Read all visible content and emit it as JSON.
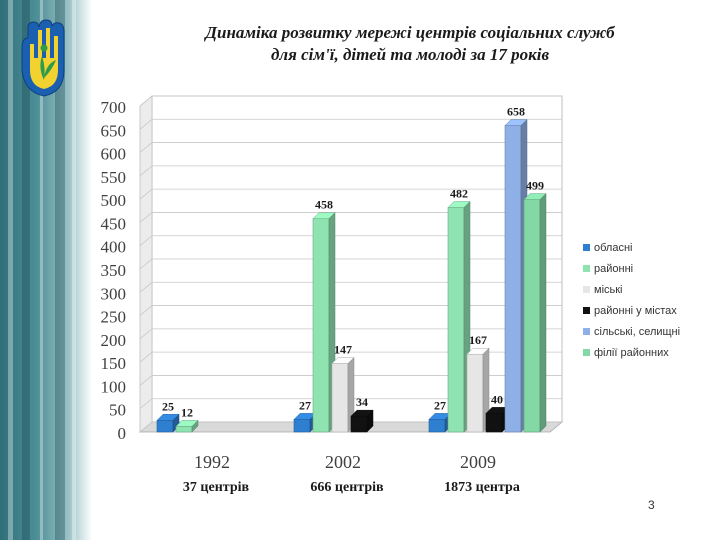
{
  "title_lines": [
    "Динаміка розвитку мережі центрів соціальних служб",
    "для сім'ї, дітей та молоді за 17 років"
  ],
  "page_number": "3",
  "colors": {
    "oblasni": "#2f7fd0",
    "raionni": "#8fe3b0",
    "miski": "#e6e6e6",
    "raionni_v_mistakh": "#111111",
    "silski": "#8fb0e6",
    "filii": "#84d8a6"
  },
  "chart_data": {
    "type": "bar",
    "categories": [
      "1992",
      "2002",
      "2009"
    ],
    "category_sublabels": [
      "37 центрів",
      "666 центрів",
      "1873 центра"
    ],
    "ylim": [
      0,
      700
    ],
    "ytick_step": 50,
    "yticks": [
      "0",
      "50",
      "100",
      "150",
      "200",
      "250",
      "300",
      "350",
      "400",
      "450",
      "500",
      "550",
      "600",
      "650",
      "700"
    ],
    "grid": true,
    "legend_position": "right",
    "series": [
      {
        "name": "обласні",
        "color": "#2f7fd0",
        "values": [
          25,
          27,
          27
        ]
      },
      {
        "name": "районні",
        "color": "#8fe3b0",
        "values": [
          12,
          458,
          482
        ]
      },
      {
        "name": "міські",
        "color": "#e6e6e6",
        "values": [
          null,
          147,
          167
        ]
      },
      {
        "name": "районні у містах",
        "color": "#111111",
        "values": [
          null,
          34,
          40
        ]
      },
      {
        "name": "сільські, селищні",
        "color": "#8fb0e6",
        "values": [
          null,
          null,
          658
        ]
      },
      {
        "name": "філії районних",
        "color": "#84d8a6",
        "values": [
          null,
          null,
          499
        ]
      }
    ]
  }
}
